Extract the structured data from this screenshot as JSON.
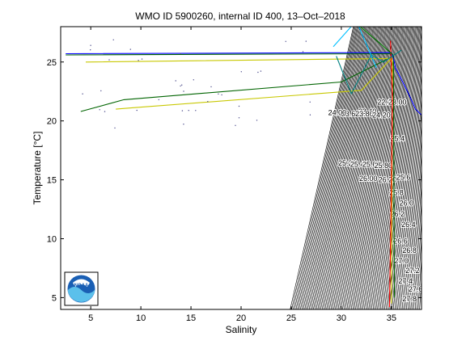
{
  "chart_data": {
    "type": "scatter",
    "title": "WMO ID 5900260, internal ID 400, 13–Oct–2018",
    "xlabel": "Salinity",
    "ylabel": "Temperature [°C]",
    "xlim": [
      2,
      38
    ],
    "ylim": [
      4,
      28
    ],
    "xticks": [
      5,
      10,
      15,
      20,
      25,
      30,
      35
    ],
    "yticks": [
      5,
      10,
      15,
      20,
      25
    ],
    "grid": false,
    "density_contour_labels": [
      {
        "text": "22.00",
        "x": 34.5,
        "y": 21.4
      },
      {
        "text": "23.00",
        "x": 35.6,
        "y": 21.4
      },
      {
        "text": "23.40",
        "x": 32.6,
        "y": 20.6
      },
      {
        "text": "23.60",
        "x": 30.9,
        "y": 20.4
      },
      {
        "text": "23.80",
        "x": 32.3,
        "y": 20.4
      },
      {
        "text": "24.00",
        "x": 29.6,
        "y": 20.5
      },
      {
        "text": "24.20",
        "x": 34.0,
        "y": 20.3
      },
      {
        "text": "25.20",
        "x": 30.6,
        "y": 16.2
      },
      {
        "text": "25.40",
        "x": 31.8,
        "y": 16.1
      },
      {
        "text": "25.60",
        "x": 33.0,
        "y": 16.1
      },
      {
        "text": "25.80",
        "x": 34.2,
        "y": 16.0
      },
      {
        "text": "26.00",
        "x": 32.7,
        "y": 14.9
      },
      {
        "text": "26.20",
        "x": 34.6,
        "y": 14.8
      },
      {
        "text": "25.4",
        "x": 35.6,
        "y": 18.3
      },
      {
        "text": "25.6",
        "x": 36.2,
        "y": 15.0
      },
      {
        "text": "25.8",
        "x": 35.5,
        "y": 13.7
      },
      {
        "text": "26.0",
        "x": 36.5,
        "y": 12.8
      },
      {
        "text": "26.2",
        "x": 35.6,
        "y": 11.9
      },
      {
        "text": "26.4",
        "x": 36.7,
        "y": 11.0
      },
      {
        "text": "26.6",
        "x": 35.9,
        "y": 9.6
      },
      {
        "text": "26.8",
        "x": 36.8,
        "y": 8.8
      },
      {
        "text": "27.0",
        "x": 36.0,
        "y": 7.9
      },
      {
        "text": "27.2",
        "x": 37.1,
        "y": 7.1
      },
      {
        "text": "27.4",
        "x": 36.4,
        "y": 6.2
      },
      {
        "text": "27.6",
        "x": 37.4,
        "y": 5.5
      },
      {
        "text": "27.8",
        "x": 36.8,
        "y": 4.7
      }
    ],
    "series": [
      {
        "color": "#006400",
        "x": [
          4.0,
          8.3,
          30.0,
          35.2,
          35.3
        ],
        "y": [
          20.8,
          21.8,
          23.3,
          25.5,
          5.0
        ]
      },
      {
        "color": "#006400",
        "x": [
          2.5,
          35.0,
          35.2
        ],
        "y": [
          25.6,
          25.7,
          25.2
        ]
      },
      {
        "color": "#c8c800",
        "x": [
          7.5,
          9.0,
          32.0,
          35.1,
          35.0
        ],
        "y": [
          21.0,
          21.1,
          22.6,
          25.4,
          4.5
        ]
      },
      {
        "color": "#c8c800",
        "x": [
          4.5,
          34.8,
          35.0
        ],
        "y": [
          25.0,
          25.3,
          25.0
        ]
      },
      {
        "color": "#0000ff",
        "x": [
          2.5,
          35.0,
          35.3,
          35.4,
          36.6,
          37.4,
          38.0
        ],
        "y": [
          25.7,
          25.8,
          25.0,
          24.5,
          22.5,
          21.0,
          20.5
        ]
      },
      {
        "color": "#ff0000",
        "x": [
          34.9,
          35.1,
          35.0,
          34.9,
          34.8
        ],
        "y": [
          26.8,
          22.0,
          15.0,
          9.0,
          4.2
        ]
      },
      {
        "color": "#008080",
        "x": [
          29.5,
          31.0,
          33.0,
          34.2,
          36.0
        ],
        "y": [
          25.5,
          22.3,
          25.6,
          25.0,
          26.0
        ]
      },
      {
        "color": "#00bfff",
        "x": [
          29.2,
          31.5,
          33.5
        ],
        "y": [
          26.3,
          28.5,
          24.5
        ]
      },
      {
        "color": "#008000",
        "x": [
          31.2,
          35.2
        ],
        "y": [
          28.5,
          25.6
        ]
      }
    ]
  }
}
